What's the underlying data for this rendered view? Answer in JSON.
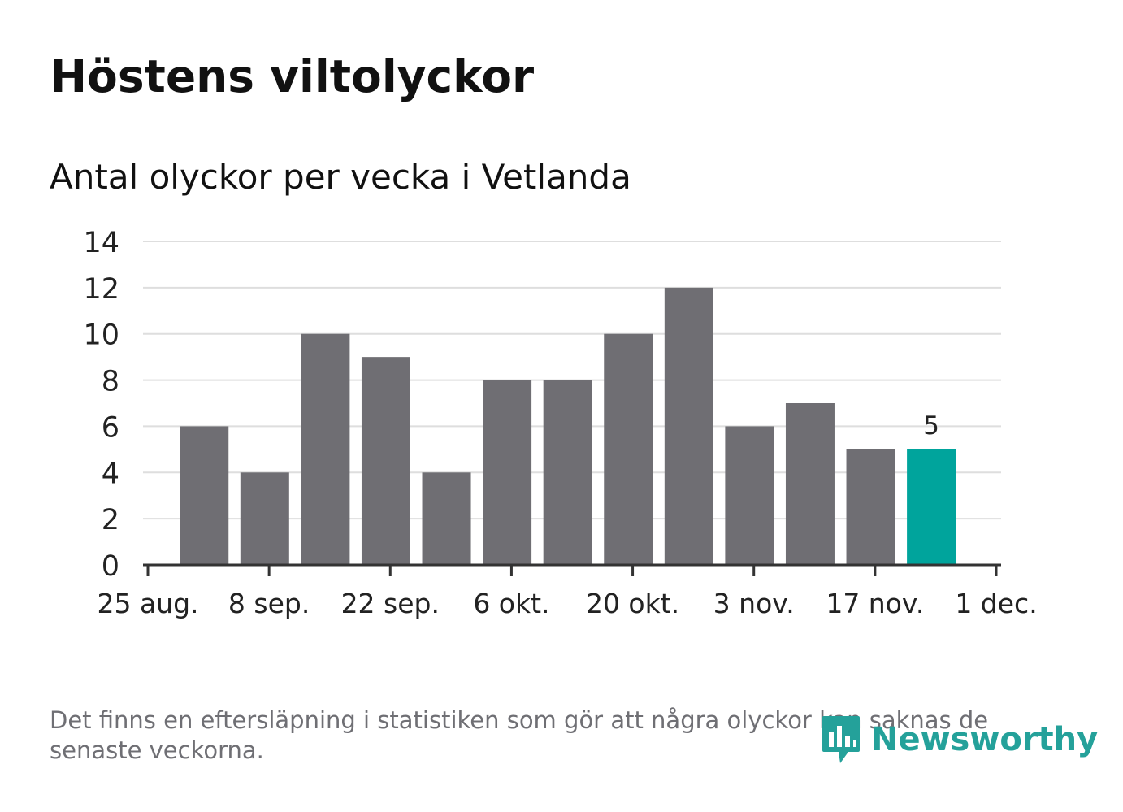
{
  "header": {
    "title": "Höstens viltolyckor",
    "subtitle": "Antal olyckor per vecka i Vetlanda"
  },
  "chart_data": {
    "type": "bar",
    "title": "Höstens viltolyckor",
    "subtitle": "Antal olyckor per vecka i Vetlanda",
    "x": [
      "2025-09-01",
      "2025-09-08",
      "2025-09-15",
      "2025-09-22",
      "2025-09-29",
      "2025-10-06",
      "2025-10-13",
      "2025-10-20",
      "2025-10-27",
      "2025-11-03",
      "2025-11-10",
      "2025-11-17",
      "2025-11-24"
    ],
    "values": [
      6,
      4,
      10,
      9,
      4,
      8,
      8,
      10,
      12,
      6,
      7,
      5,
      5
    ],
    "ylim": [
      0,
      14
    ],
    "yticks": [
      0,
      2,
      4,
      6,
      8,
      10,
      12,
      14
    ],
    "xticks": [
      {
        "date": "2025-08-25",
        "label": "25 aug."
      },
      {
        "date": "2025-09-08",
        "label": "8 sep."
      },
      {
        "date": "2025-09-22",
        "label": "22 sep."
      },
      {
        "date": "2025-10-06",
        "label": "6 okt."
      },
      {
        "date": "2025-10-20",
        "label": "20 okt."
      },
      {
        "date": "2025-11-03",
        "label": "3 nov."
      },
      {
        "date": "2025-11-17",
        "label": "17 nov."
      },
      {
        "date": "2025-12-01",
        "label": "1 dec."
      }
    ],
    "highlight_last": true,
    "highlight_label": "5",
    "grid": true,
    "colors": {
      "bar": "#6f6e73",
      "highlight": "#00a49c",
      "grid": "#dedede",
      "axis": "#333333"
    }
  },
  "footer": {
    "note": "Det finns en eftersläpning i statistiken som gör att några olyckor kan saknas de senaste veckorna.",
    "brand": "Newsworthy",
    "brand_icon": "bar-chart-speech-bubble-icon",
    "brand_color": "#24a19a"
  }
}
